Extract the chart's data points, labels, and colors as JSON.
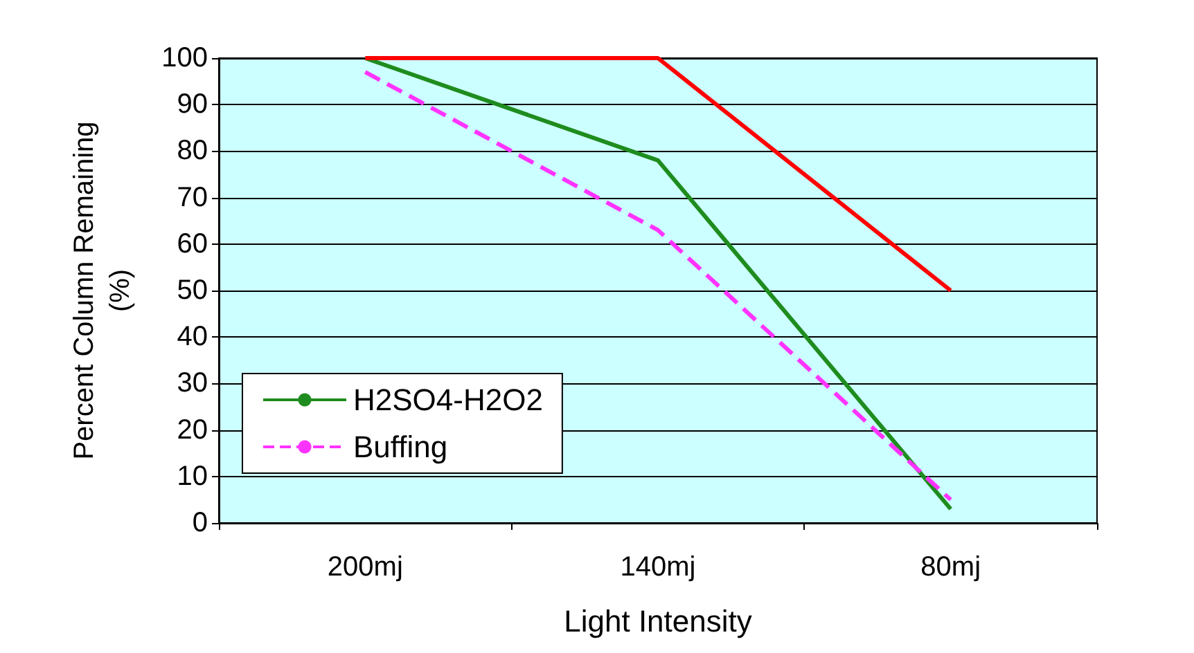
{
  "chart_data": {
    "type": "line",
    "xlabel": "Light Intensity",
    "ylabel": "Percent Column Remaining (%)",
    "categories": [
      "200mj",
      "140mj",
      "80mj"
    ],
    "series": [
      {
        "name": "H2SO4-H2O2",
        "color": "#1e8c1e",
        "values": [
          100,
          78,
          3
        ],
        "line_style": "solid"
      },
      {
        "name": "Buffing",
        "color": "#ff33ff",
        "values": [
          97,
          63,
          5
        ],
        "line_style": "dashed"
      },
      {
        "color": "#ff0000",
        "values": [
          100,
          100,
          50
        ],
        "line_style": "solid"
      }
    ],
    "ylim": [
      0,
      100
    ],
    "yticks": [
      0,
      10,
      20,
      30,
      40,
      50,
      60,
      70,
      80,
      90,
      100
    ],
    "grid": "y",
    "legend": "bottom left",
    "marker": "none"
  }
}
